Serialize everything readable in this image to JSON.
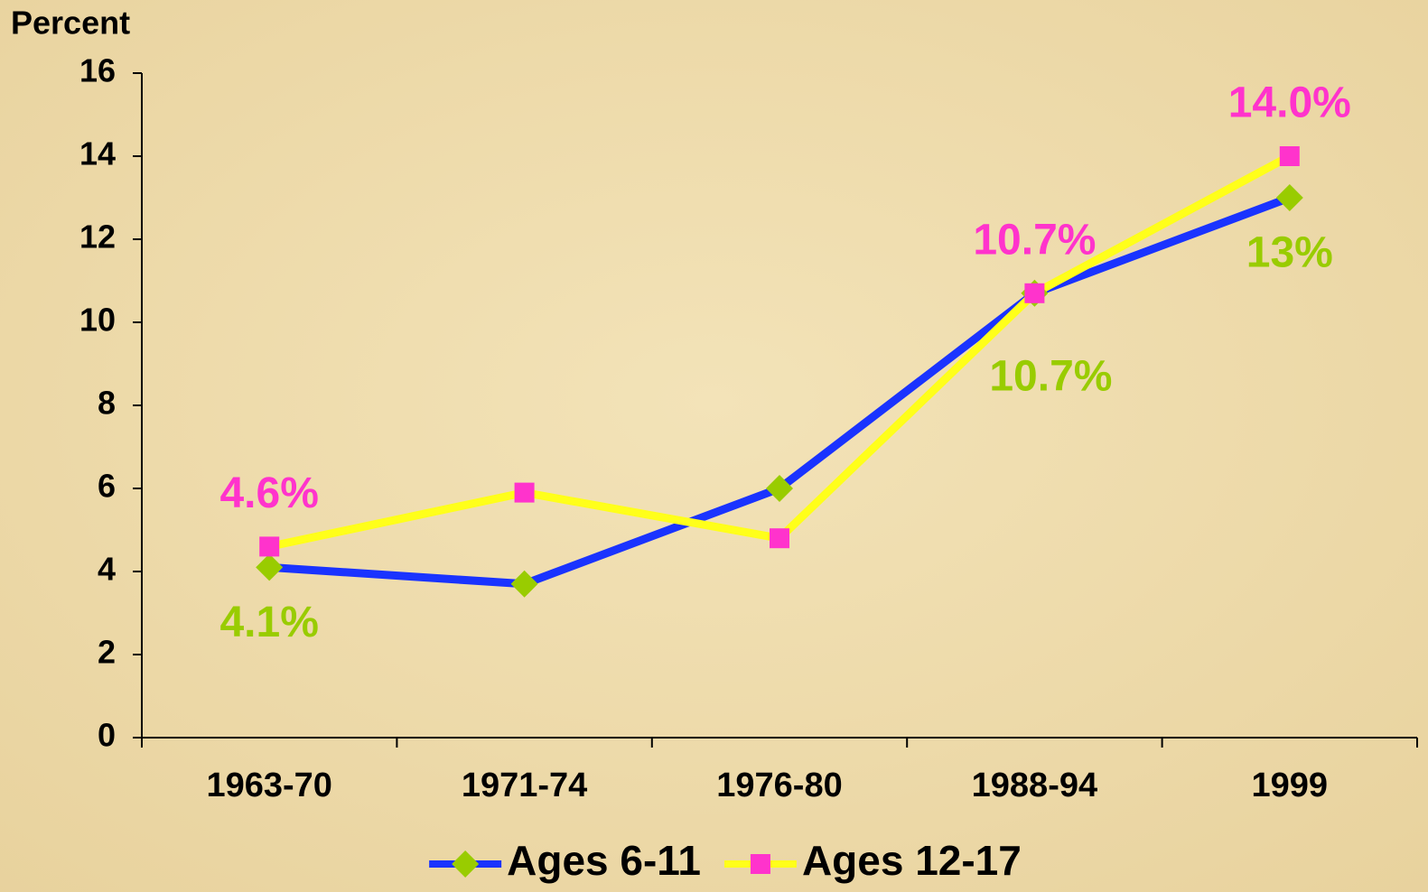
{
  "chart_data": {
    "type": "line",
    "y_axis_label": "Percent",
    "categories": [
      "1963-70",
      "1971-74",
      "1976-80",
      "1988-94",
      "1999"
    ],
    "series": [
      {
        "name": "Ages 6-11",
        "color": "#1a33ff",
        "marker_color": "#99cc00",
        "marker": "diamond",
        "values": [
          4.1,
          3.7,
          6.0,
          10.7,
          13
        ],
        "value_labels": [
          "4.1%",
          null,
          null,
          "10.7%",
          "13%"
        ]
      },
      {
        "name": "Ages 12-17",
        "color": "#ffff1a",
        "marker_color": "#ff33cc",
        "marker": "square",
        "values": [
          4.6,
          5.9,
          4.8,
          10.7,
          14.0
        ],
        "value_labels": [
          "4.6%",
          null,
          null,
          "10.7%",
          "14.0%"
        ]
      }
    ],
    "ylim": [
      0,
      16
    ],
    "yticks": [
      0,
      2,
      4,
      6,
      8,
      10,
      12,
      14,
      16
    ],
    "grid": false,
    "legend": "bottom"
  }
}
